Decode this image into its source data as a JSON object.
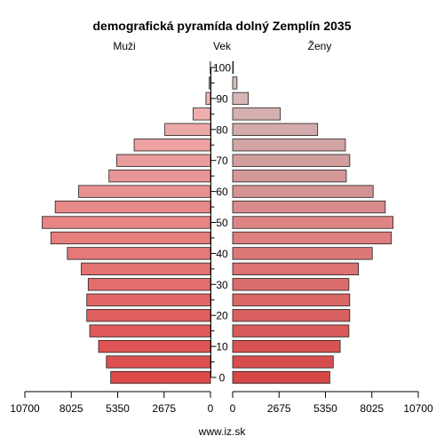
{
  "chart_data": {
    "type": "bar",
    "title": "demografická pyramída dolný Zemplín 2035",
    "left_label": "Muži",
    "center_label": "Vek",
    "right_label": "Ženy",
    "footer": "www.iz.sk",
    "xlim": [
      0,
      10700
    ],
    "x_ticks": [
      "10700",
      "8025",
      "5350",
      "2675",
      "0"
    ],
    "x_ticks_right": [
      "0",
      "2675",
      "5350",
      "8025",
      "10700"
    ],
    "age_ticks": [
      "0",
      "10",
      "20",
      "30",
      "40",
      "50",
      "60",
      "70",
      "80",
      "90",
      "100"
    ],
    "age_groups": [
      "0-4",
      "5-9",
      "10-14",
      "15-19",
      "20-24",
      "25-29",
      "30-34",
      "35-39",
      "40-44",
      "45-49",
      "50-54",
      "55-59",
      "60-64",
      "65-69",
      "70-74",
      "75-79",
      "80-84",
      "85-89",
      "90-94",
      "95-99",
      "100+"
    ],
    "series": [
      {
        "name": "Muži",
        "values": [
          5750,
          6000,
          6450,
          6960,
          7130,
          7130,
          7050,
          7450,
          8250,
          9200,
          9700,
          8950,
          7600,
          5850,
          5400,
          4400,
          2630,
          1000,
          260,
          70,
          15
        ]
      },
      {
        "name": "Ženy",
        "values": [
          5600,
          5800,
          6200,
          6700,
          6750,
          6750,
          6700,
          7250,
          8050,
          9150,
          9250,
          8800,
          8100,
          6550,
          6750,
          6500,
          4900,
          2750,
          900,
          250,
          40
        ]
      }
    ],
    "colors": {
      "male": [
        "#dd4a4a",
        "#de4f4f",
        "#df5555",
        "#e05a5a",
        "#e16060",
        "#e26666",
        "#e36c6c",
        "#e47272",
        "#e57878",
        "#e67e7e",
        "#e78484",
        "#e88a8a",
        "#e99090",
        "#ea9696",
        "#eb9c9c",
        "#eca2a2",
        "#eda8a8",
        "#eeaeae",
        "#efb4b4",
        "#f0baba",
        "#f1c0c0"
      ],
      "female": [
        "#d64848",
        "#d74e4e",
        "#d85454",
        "#d95a5a",
        "#d96060",
        "#da6666",
        "#db6c6c",
        "#dc7272",
        "#dd7878",
        "#de7e7e",
        "#df8484",
        "#d98c8c",
        "#d49292",
        "#d49898",
        "#d39e9e",
        "#d3a4a4",
        "#d4aaaa",
        "#d6b0b0",
        "#d8b6b6",
        "#dabcbc",
        "#dcc2c2"
      ]
    }
  }
}
